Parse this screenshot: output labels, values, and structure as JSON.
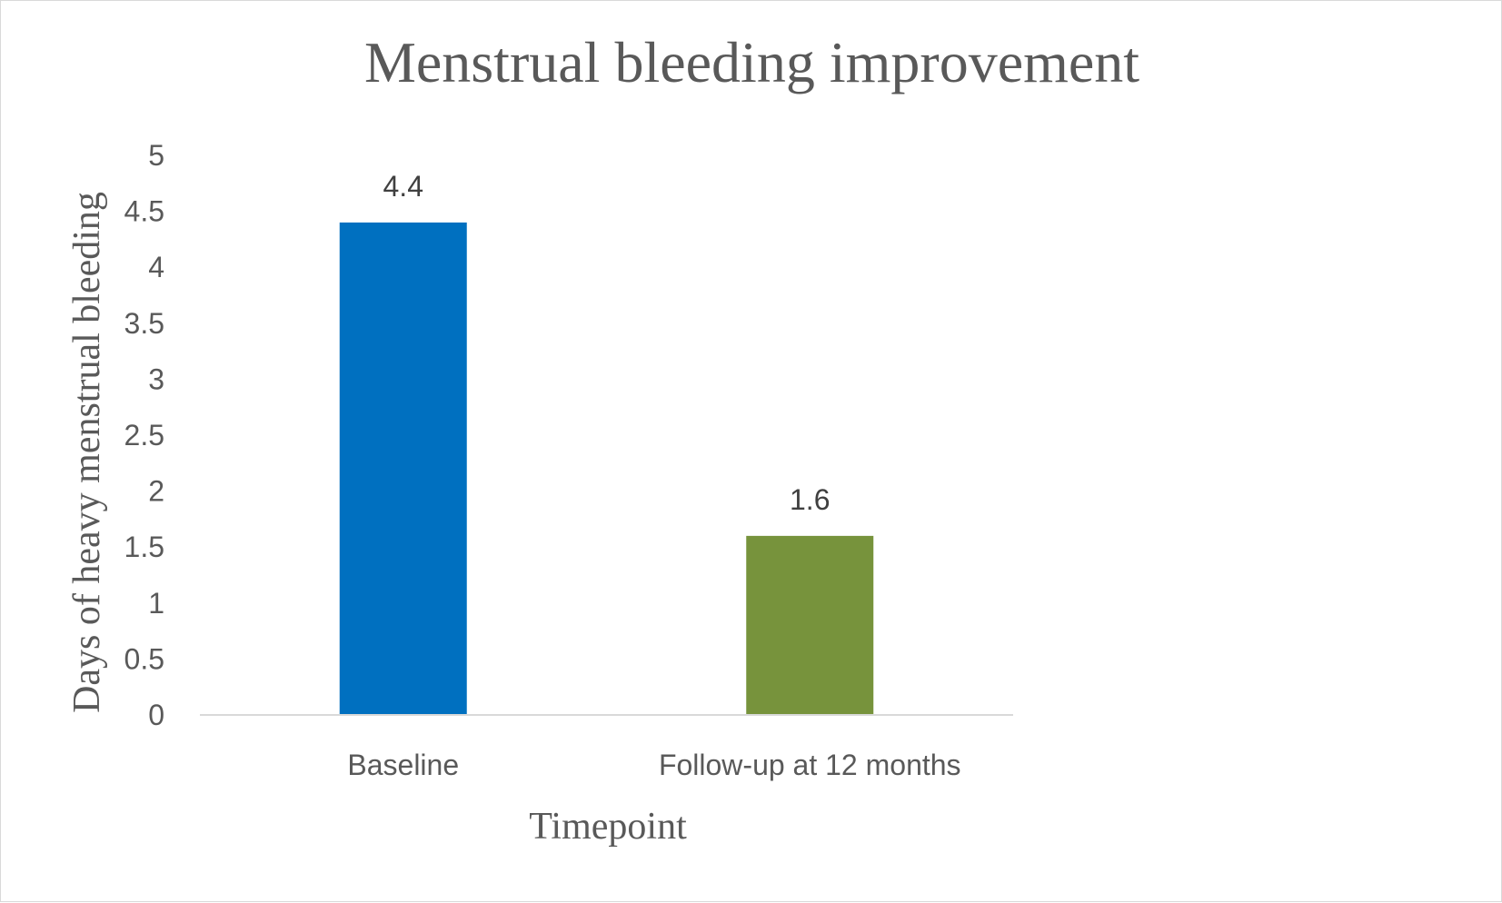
{
  "chart_data": {
    "type": "bar",
    "title": "Menstrual bleeding improvement",
    "xlabel": "Timepoint",
    "ylabel": "Days of heavy menstrual bleeding",
    "categories": [
      "Baseline",
      "Follow-up at 12 months"
    ],
    "values": [
      4.4,
      1.6
    ],
    "data_labels": [
      "4.4",
      "1.6"
    ],
    "bar_colors": [
      "#0070C0",
      "#77933C"
    ],
    "ylim": [
      0,
      5
    ],
    "yticks": [
      "0",
      "0.5",
      "1",
      "1.5",
      "2",
      "2.5",
      "3",
      "3.5",
      "4",
      "4.5",
      "5"
    ],
    "grid": false,
    "legend": "none"
  }
}
